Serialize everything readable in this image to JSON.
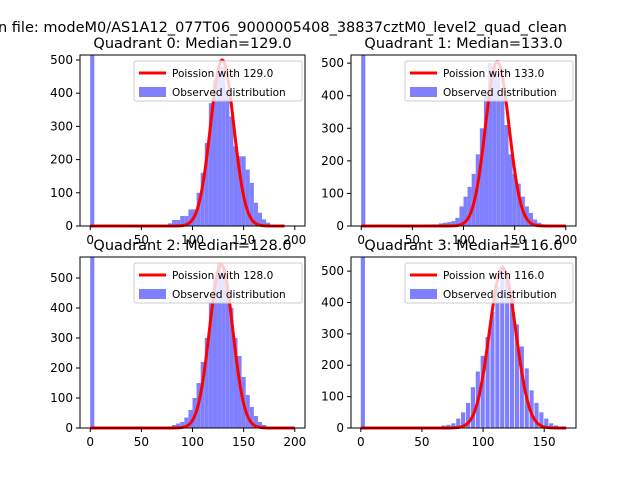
{
  "figure": {
    "suptitle": "n file: modeM0/AS1A12_077T06_9000005408_38837cztM0_level2_quad_clean",
    "colors": {
      "histogram": "#8080ff",
      "poisson_line": "#ff0000",
      "axes": "#000000",
      "background": "#ffffff"
    }
  },
  "chart_data": [
    {
      "type": "histogram",
      "title": "Quadrant 0: Median=129.0",
      "xlim": [
        -10,
        210
      ],
      "ylim": [
        0,
        515
      ],
      "xticks": [
        0,
        50,
        100,
        150,
        200
      ],
      "yticks": [
        0,
        100,
        200,
        300,
        400,
        500
      ],
      "bin_width": 4,
      "bins": [
        [
          0,
          520
        ],
        [
          68,
          4
        ],
        [
          72,
          4
        ],
        [
          76,
          8
        ],
        [
          80,
          18
        ],
        [
          84,
          18
        ],
        [
          88,
          30
        ],
        [
          92,
          30
        ],
        [
          96,
          50
        ],
        [
          100,
          50
        ],
        [
          104,
          100
        ],
        [
          108,
          160
        ],
        [
          112,
          250
        ],
        [
          116,
          370
        ],
        [
          120,
          440
        ],
        [
          124,
          480
        ],
        [
          128,
          480
        ],
        [
          132,
          410
        ],
        [
          136,
          330
        ],
        [
          140,
          240
        ],
        [
          144,
          210
        ],
        [
          148,
          210
        ],
        [
          152,
          170
        ],
        [
          156,
          130
        ],
        [
          160,
          70
        ],
        [
          164,
          40
        ],
        [
          168,
          20
        ],
        [
          172,
          10
        ],
        [
          176,
          4
        ]
      ],
      "legend": [
        {
          "label": "Poission with 129.0",
          "kind": "line",
          "color": "#ff0000"
        },
        {
          "label": "Observed distribution",
          "kind": "patch",
          "color": "#8080ff"
        }
      ],
      "legend_loc": "upper right",
      "poisson": {
        "lambda": 129.0,
        "x_range": [
          0,
          190
        ],
        "peak": 500
      }
    },
    {
      "type": "histogram",
      "title": "Quadrant 1: Median=133.0",
      "xlim": [
        -10,
        210
      ],
      "ylim": [
        0,
        525
      ],
      "xticks": [
        0,
        50,
        100,
        150,
        200
      ],
      "yticks": [
        0,
        100,
        200,
        300,
        400,
        500
      ],
      "bin_width": 4,
      "bins": [
        [
          0,
          530
        ],
        [
          64,
          3
        ],
        [
          68,
          5
        ],
        [
          72,
          5
        ],
        [
          76,
          8
        ],
        [
          80,
          10
        ],
        [
          84,
          12
        ],
        [
          88,
          15
        ],
        [
          92,
          25
        ],
        [
          96,
          60
        ],
        [
          100,
          90
        ],
        [
          104,
          120
        ],
        [
          108,
          160
        ],
        [
          112,
          220
        ],
        [
          116,
          300
        ],
        [
          120,
          410
        ],
        [
          124,
          500
        ],
        [
          128,
          490
        ],
        [
          132,
          470
        ],
        [
          136,
          400
        ],
        [
          140,
          310
        ],
        [
          144,
          220
        ],
        [
          148,
          160
        ],
        [
          152,
          130
        ],
        [
          156,
          90
        ],
        [
          160,
          60
        ],
        [
          164,
          40
        ],
        [
          168,
          20
        ],
        [
          172,
          10
        ],
        [
          176,
          5
        ]
      ],
      "legend": [
        {
          "label": "Poission with 133.0",
          "kind": "line",
          "color": "#ff0000"
        },
        {
          "label": "Observed distribution",
          "kind": "patch",
          "color": "#8080ff"
        }
      ],
      "legend_loc": "upper right",
      "poisson": {
        "lambda": 133.0,
        "x_range": [
          0,
          200
        ],
        "peak": 505
      }
    },
    {
      "type": "histogram",
      "title": "Quadrant 2: Median=128.0",
      "xlim": [
        -10,
        210
      ],
      "ylim": [
        0,
        570
      ],
      "xticks": [
        0,
        50,
        100,
        150,
        200
      ],
      "yticks": [
        0,
        100,
        200,
        300,
        400,
        500
      ],
      "bin_width": 4,
      "bins": [
        [
          0,
          570
        ],
        [
          72,
          3
        ],
        [
          76,
          5
        ],
        [
          80,
          10
        ],
        [
          84,
          15
        ],
        [
          88,
          20
        ],
        [
          92,
          35
        ],
        [
          96,
          60
        ],
        [
          100,
          100
        ],
        [
          104,
          150
        ],
        [
          108,
          220
        ],
        [
          112,
          300
        ],
        [
          116,
          420
        ],
        [
          120,
          500
        ],
        [
          124,
          550
        ],
        [
          128,
          520
        ],
        [
          132,
          480
        ],
        [
          136,
          400
        ],
        [
          140,
          300
        ],
        [
          144,
          240
        ],
        [
          148,
          170
        ],
        [
          152,
          110
        ],
        [
          156,
          70
        ],
        [
          160,
          40
        ],
        [
          164,
          20
        ],
        [
          168,
          10
        ],
        [
          172,
          4
        ]
      ],
      "legend": [
        {
          "label": "Poission with 128.0",
          "kind": "line",
          "color": "#ff0000"
        },
        {
          "label": "Observed distribution",
          "kind": "patch",
          "color": "#8080ff"
        }
      ],
      "legend_loc": "upper right",
      "poisson": {
        "lambda": 128.0,
        "x_range": [
          0,
          200
        ],
        "peak": 545
      }
    },
    {
      "type": "histogram",
      "title": "Quadrant 3: Median=116.0",
      "xlim": [
        -8,
        176
      ],
      "ylim": [
        0,
        545
      ],
      "xticks": [
        0,
        50,
        100,
        150
      ],
      "yticks": [
        0,
        100,
        200,
        300,
        400,
        500
      ],
      "bin_width": 3.4,
      "bins": [
        [
          0,
          545
        ],
        [
          62,
          4
        ],
        [
          66,
          8
        ],
        [
          70,
          10
        ],
        [
          74,
          15
        ],
        [
          78,
          30
        ],
        [
          82,
          50
        ],
        [
          86,
          80
        ],
        [
          90,
          130
        ],
        [
          94,
          180
        ],
        [
          98,
          230
        ],
        [
          102,
          290
        ],
        [
          106,
          370
        ],
        [
          110,
          450
        ],
        [
          114,
          520
        ],
        [
          118,
          480
        ],
        [
          122,
          420
        ],
        [
          126,
          330
        ],
        [
          130,
          260
        ],
        [
          134,
          190
        ],
        [
          138,
          120
        ],
        [
          142,
          80
        ],
        [
          146,
          50
        ],
        [
          150,
          30
        ],
        [
          154,
          15
        ],
        [
          158,
          8
        ],
        [
          162,
          4
        ]
      ],
      "legend": [
        {
          "label": "Poission with 116.0",
          "kind": "line",
          "color": "#ff0000"
        },
        {
          "label": "Observed distribution",
          "kind": "patch",
          "color": "#8080ff"
        }
      ],
      "legend_loc": "upper right",
      "poisson": {
        "lambda": 116.0,
        "x_range": [
          0,
          168
        ],
        "peak": 510
      }
    }
  ]
}
